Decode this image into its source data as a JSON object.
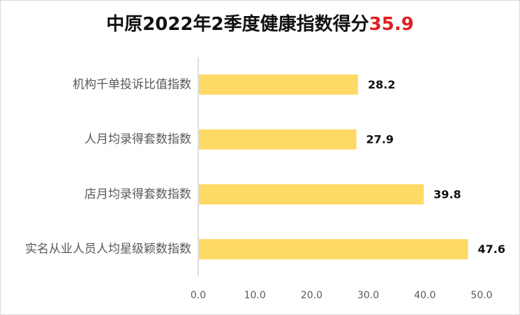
{
  "chart_data": {
    "type": "bar",
    "orientation": "horizontal",
    "title": "中原2022年2季度健康指数得分",
    "title_score": "35.9",
    "categories": [
      "机构千单投诉比值指数",
      "人月均录得套数指数",
      "店月均录得套数指数",
      "实名从业人员人均星级颖数指数"
    ],
    "values": [
      28.2,
      27.9,
      39.8,
      47.6
    ],
    "value_labels": [
      "28.2",
      "27.9",
      "39.8",
      "47.6"
    ],
    "x_ticks": [
      "0.0",
      "10.0",
      "20.0",
      "30.0",
      "40.0",
      "50.0"
    ],
    "xlim": [
      0,
      50
    ],
    "grid": false,
    "legend": "none",
    "bar_color": "#ffd966",
    "score_color": "#e01f1f"
  }
}
